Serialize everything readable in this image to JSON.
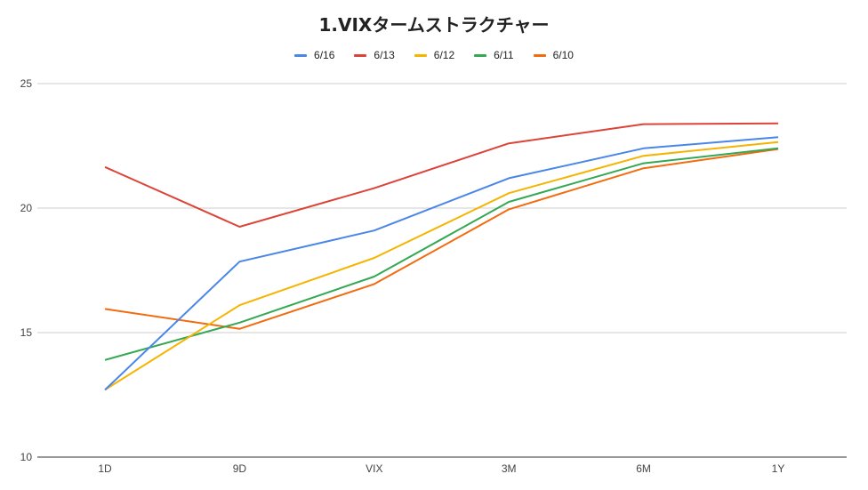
{
  "chart_data": {
    "type": "line",
    "title": "1.VIXタームストラクチャー",
    "categories": [
      "1D",
      "9D",
      "VIX",
      "3M",
      "6M",
      "1Y"
    ],
    "ylim": [
      10,
      25
    ],
    "yticks": [
      "10",
      "15",
      "20",
      "25"
    ],
    "grid": true,
    "legend_position": "top",
    "series": [
      {
        "name": "6/16",
        "color": "#4a86e8",
        "values": [
          12.7,
          17.85,
          19.1,
          21.2,
          22.4,
          22.85
        ]
      },
      {
        "name": "6/13",
        "color": "#db4437",
        "values": [
          21.65,
          19.25,
          20.8,
          22.6,
          23.37,
          23.4
        ]
      },
      {
        "name": "6/12",
        "color": "#f4b400",
        "values": [
          12.7,
          16.1,
          18.0,
          20.6,
          22.1,
          22.65
        ]
      },
      {
        "name": "6/11",
        "color": "#34a853",
        "values": [
          13.9,
          15.4,
          17.25,
          20.25,
          21.8,
          22.4
        ]
      },
      {
        "name": "6/10",
        "color": "#f26b0f",
        "values": [
          15.95,
          15.15,
          16.95,
          19.95,
          21.6,
          22.37
        ]
      }
    ]
  }
}
